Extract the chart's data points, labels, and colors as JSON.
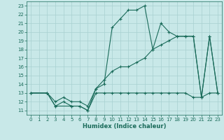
{
  "xlabel": "Humidex (Indice chaleur)",
  "bg_color": "#c8e8e8",
  "line_color": "#1a6b5a",
  "grid_color": "#a8d0d0",
  "xlim": [
    -0.5,
    23.5
  ],
  "ylim": [
    10.5,
    23.5
  ],
  "yticks": [
    11,
    12,
    13,
    14,
    15,
    16,
    17,
    18,
    19,
    20,
    21,
    22,
    23
  ],
  "xticks": [
    0,
    1,
    2,
    3,
    4,
    5,
    6,
    7,
    8,
    9,
    10,
    11,
    12,
    13,
    14,
    15,
    16,
    17,
    18,
    19,
    20,
    21,
    22,
    23
  ],
  "curve_bottom_x": [
    0,
    2,
    3,
    4,
    5,
    6,
    7,
    8,
    9,
    10,
    11,
    12,
    13,
    14,
    15,
    16,
    17,
    18,
    19,
    20,
    21,
    22,
    23
  ],
  "curve_bottom_y": [
    13,
    13,
    11.5,
    12,
    11.5,
    11.5,
    11,
    13,
    13,
    13,
    13,
    13,
    13,
    13,
    13,
    13,
    13,
    13,
    13,
    12.5,
    12.5,
    13,
    13
  ],
  "curve_mid_x": [
    0,
    2,
    3,
    4,
    5,
    6,
    7,
    8,
    9,
    10,
    11,
    12,
    13,
    14,
    15,
    16,
    17,
    18,
    19,
    20,
    21,
    22,
    23
  ],
  "curve_mid_y": [
    13,
    13,
    12,
    12.5,
    12,
    12,
    11.5,
    13.5,
    14.5,
    15.5,
    16,
    16,
    16.5,
    17,
    18,
    18.5,
    19,
    19.5,
    19.5,
    19.5,
    12.5,
    19.5,
    13
  ],
  "curve_top_x": [
    0,
    2,
    3,
    5,
    6,
    7,
    8,
    9,
    10,
    11,
    12,
    13,
    14,
    15,
    16,
    17,
    18,
    19,
    20,
    21,
    22,
    23
  ],
  "curve_top_y": [
    13,
    13,
    11.5,
    11.5,
    11.5,
    11,
    13.5,
    14,
    20.5,
    21.5,
    22.5,
    22.5,
    23,
    18,
    21,
    20,
    19.5,
    19.5,
    19.5,
    12.5,
    19.5,
    13
  ]
}
